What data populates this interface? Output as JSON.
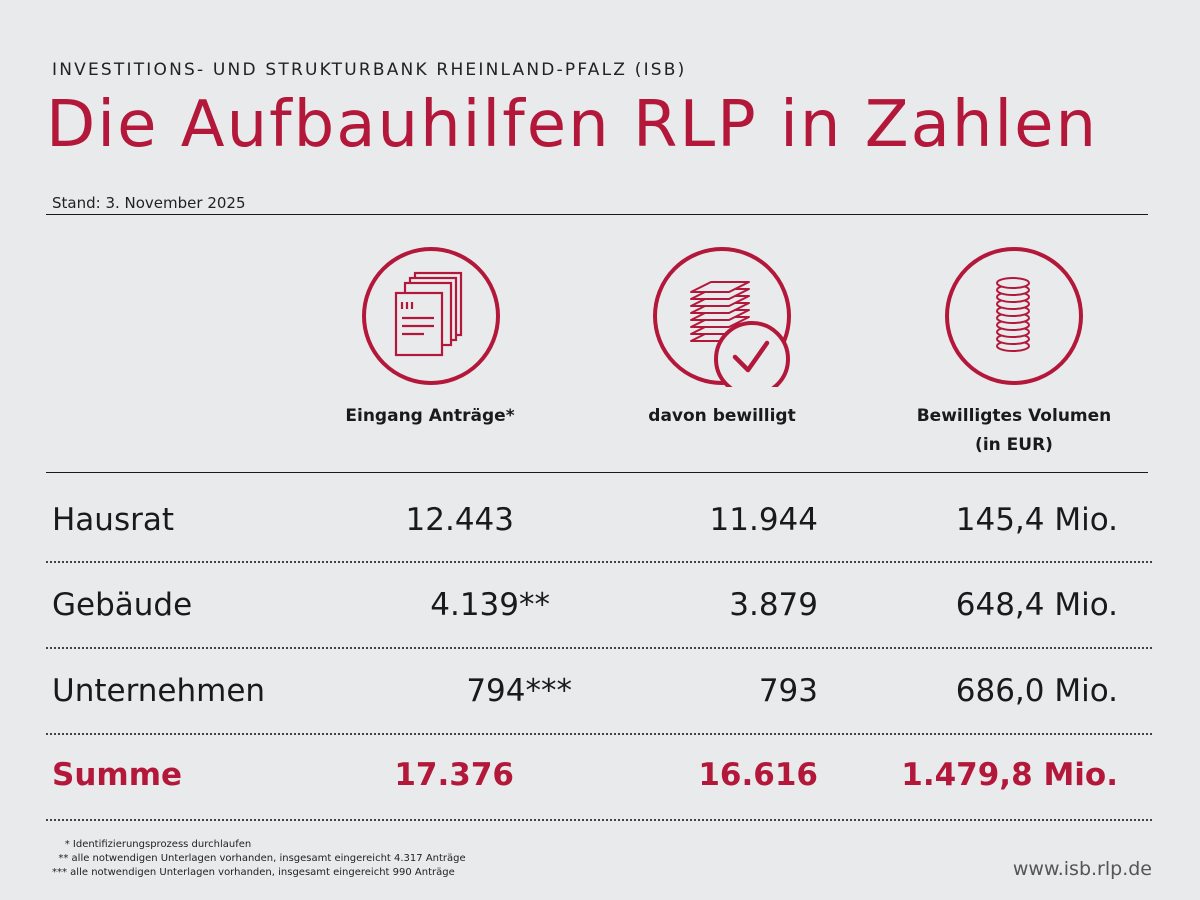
{
  "header": {
    "org": "INVESTITIONS- UND STRUKTURBANK RHEINLAND-PFALZ (ISB)",
    "title": "Die Aufbauhilfen RLP in Zahlen",
    "stand": "Stand: 3. November 2025"
  },
  "colors": {
    "accent": "#b3183a",
    "background": "#e8eaec"
  },
  "columns": [
    {
      "icon": "documents-icon",
      "label": "Eingang Anträge*"
    },
    {
      "icon": "approved-stack-icon",
      "label": "davon bewilligt"
    },
    {
      "icon": "coins-icon",
      "label_line1": "Bewilligtes Volumen",
      "label_line2": "(in EUR)"
    }
  ],
  "rows": [
    {
      "label": "Hausrat",
      "eingang": "12.443",
      "bewilligt": "11.944",
      "volumen": "145,4 Mio."
    },
    {
      "label": "Gebäude",
      "eingang": "4.139**",
      "bewilligt": "3.879",
      "volumen": "648,4 Mio."
    },
    {
      "label": "Unternehmen",
      "eingang": "794***",
      "bewilligt": "793",
      "volumen": "686,0 Mio."
    }
  ],
  "sum": {
    "label": "Summe",
    "eingang": "17.376",
    "bewilligt": "16.616",
    "volumen": "1.479,8 Mio."
  },
  "footnotes": [
    "    * Identifizierungsprozess durchlaufen",
    "  ** alle notwendigen Unterlagen vorhanden, insgesamt eingereicht 4.317 Anträge",
    "*** alle notwendigen Unterlagen vorhanden, insgesamt eingereicht 990 Anträge"
  ],
  "url": "www.isb.rlp.de"
}
